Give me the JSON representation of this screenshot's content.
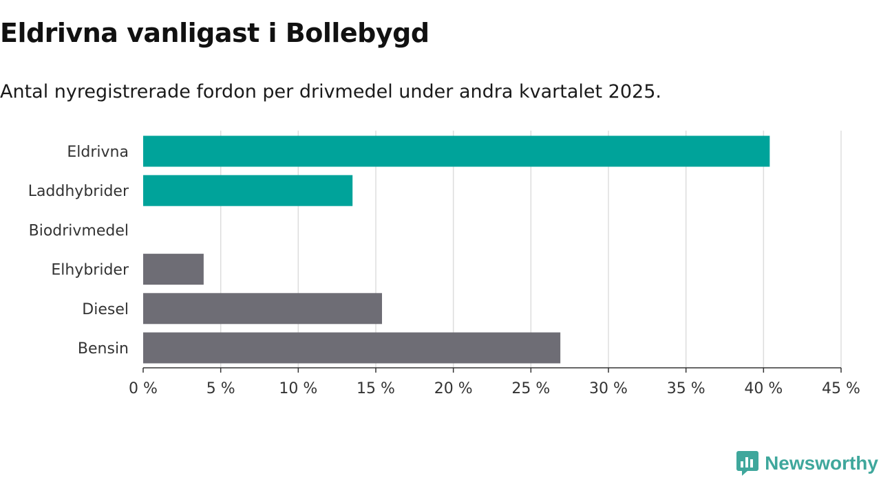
{
  "header": {
    "title": "Eldrivna vanligast i Bollebygd",
    "subtitle": "Antal nyregistrerade fordon per drivmedel under andra kvartalet 2025."
  },
  "brand": {
    "name": "Newsworthy",
    "icon": "newsworthy-logo-icon",
    "color": "#3fa79c"
  },
  "chart_data": {
    "type": "bar",
    "orientation": "horizontal",
    "categories": [
      "Eldrivna",
      "Laddhybrider",
      "Biodrivmedel",
      "Elhybrider",
      "Diesel",
      "Bensin"
    ],
    "values": [
      40.4,
      13.5,
      0,
      3.9,
      15.4,
      26.9
    ],
    "unit": "%",
    "colors": [
      "#00a39a",
      "#00a39a",
      "#6e6d75",
      "#6e6d75",
      "#6e6d75",
      "#6e6d75"
    ],
    "xlim": [
      0,
      45
    ],
    "x_ticks": [
      0,
      5,
      10,
      15,
      20,
      25,
      30,
      35,
      40,
      45
    ],
    "x_tick_labels": [
      "0 %",
      "5 %",
      "10 %",
      "15 %",
      "20 %",
      "25 %",
      "30 %",
      "35 %",
      "40 %",
      "45 %"
    ],
    "grid": "vertical",
    "legend": "none"
  }
}
